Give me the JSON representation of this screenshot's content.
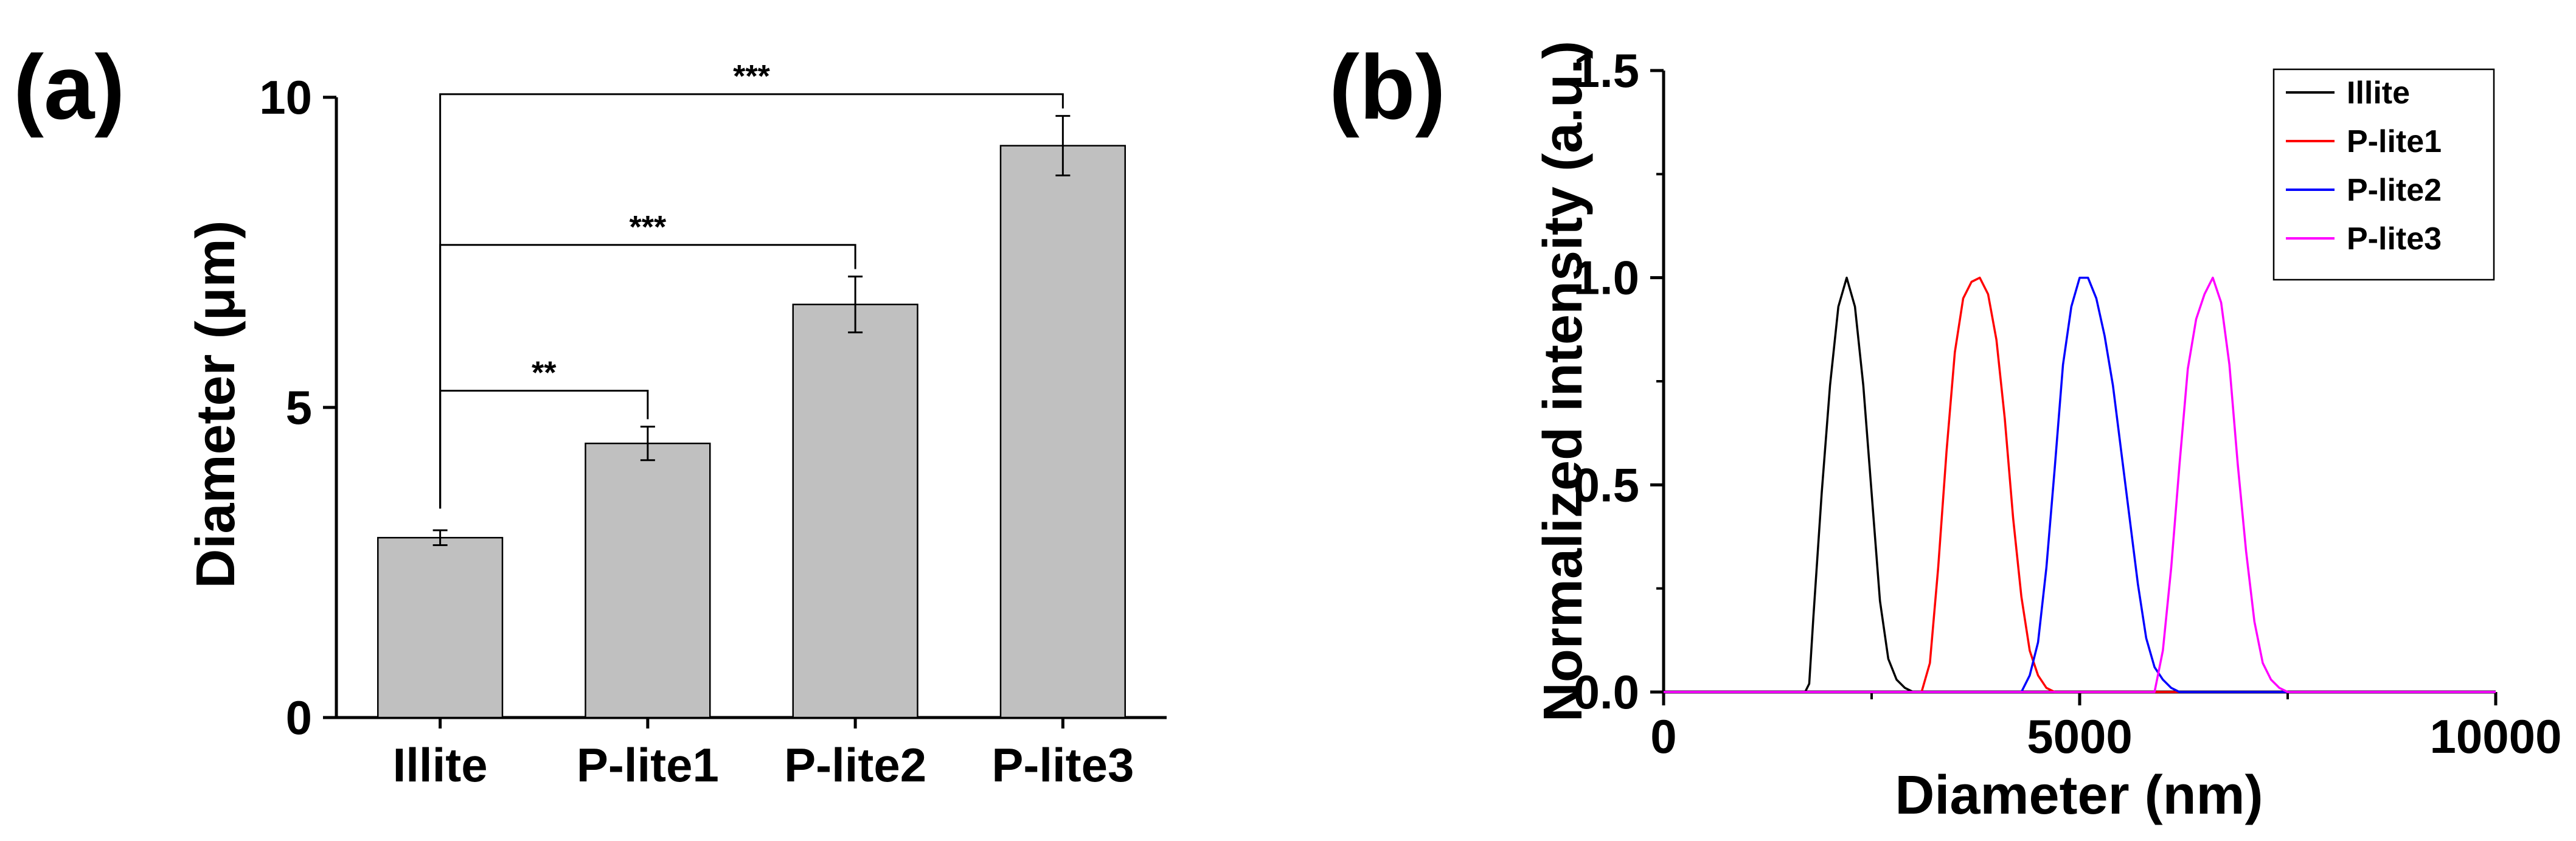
{
  "panel_labels": [
    "(a)",
    "(b)"
  ],
  "chart_data": [
    {
      "type": "bar",
      "categories": [
        "Illite",
        "P-lite1",
        "P-lite2",
        "P-lite3"
      ],
      "values": [
        2.9,
        4.42,
        6.66,
        9.22
      ],
      "errors": [
        0.12,
        0.27,
        0.45,
        0.48
      ],
      "ylabel": "Diameter (μm)",
      "xlabel": "",
      "ylim": [
        0,
        10
      ],
      "yticks": [
        "0",
        "5",
        "10"
      ],
      "bar_color": "#c0c0c0",
      "significance": [
        {
          "from": "Illite",
          "to": "P-lite1",
          "label": "**"
        },
        {
          "from": "Illite",
          "to": "P-lite2",
          "label": "***"
        },
        {
          "from": "Illite",
          "to": "P-lite3",
          "label": "***"
        }
      ]
    },
    {
      "type": "line",
      "xlabel": "Diameter (nm)",
      "ylabel": "Normalized intensity (a.u.)",
      "xlim": [
        0,
        10000
      ],
      "ylim": [
        0,
        1.5
      ],
      "xticks": [
        "0",
        "5000",
        "10000"
      ],
      "yticks": [
        "0.0",
        "0.5",
        "1.0",
        "1.5"
      ],
      "legend_position": "top-right",
      "series": [
        {
          "name": "Illite",
          "color": "#000000",
          "x": [
            0,
            1700,
            1750,
            1800,
            1900,
            2000,
            2100,
            2200,
            2300,
            2400,
            2500,
            2600,
            2700,
            2800,
            2900,
            3000,
            3100,
            3200,
            3250,
            10000
          ],
          "y": [
            0,
            0,
            0.02,
            0.18,
            0.48,
            0.74,
            0.93,
            1.0,
            0.93,
            0.74,
            0.48,
            0.22,
            0.08,
            0.03,
            0.01,
            0,
            0,
            0,
            0,
            0
          ]
        },
        {
          "name": "P-lite1",
          "color": "#ff0000",
          "x": [
            0,
            3100,
            3200,
            3300,
            3400,
            3500,
            3600,
            3700,
            3800,
            3900,
            4000,
            4100,
            4200,
            4300,
            4400,
            4500,
            4600,
            4700,
            10000
          ],
          "y": [
            0,
            0,
            0.07,
            0.3,
            0.58,
            0.82,
            0.95,
            0.99,
            1.0,
            0.96,
            0.85,
            0.66,
            0.42,
            0.23,
            0.1,
            0.04,
            0.01,
            0,
            0
          ]
        },
        {
          "name": "P-lite2",
          "color": "#0000ff",
          "x": [
            0,
            4300,
            4400,
            4500,
            4600,
            4700,
            4800,
            4900,
            5000,
            5100,
            5200,
            5300,
            5400,
            5500,
            5600,
            5700,
            5800,
            5900,
            6000,
            6100,
            6200,
            10000
          ],
          "y": [
            0,
            0,
            0.04,
            0.12,
            0.3,
            0.54,
            0.79,
            0.93,
            1.0,
            1.0,
            0.95,
            0.86,
            0.74,
            0.58,
            0.42,
            0.26,
            0.13,
            0.06,
            0.03,
            0.01,
            0,
            0
          ]
        },
        {
          "name": "P-lite3",
          "color": "#ff00ff",
          "x": [
            0,
            5900,
            6000,
            6100,
            6200,
            6300,
            6400,
            6500,
            6600,
            6700,
            6800,
            6900,
            7000,
            7100,
            7200,
            7300,
            7400,
            7500,
            7600,
            7700,
            10000
          ],
          "y": [
            0,
            0,
            0.1,
            0.3,
            0.55,
            0.78,
            0.9,
            0.96,
            1.0,
            0.94,
            0.79,
            0.55,
            0.34,
            0.17,
            0.07,
            0.03,
            0.01,
            0,
            0,
            0,
            0
          ]
        }
      ]
    }
  ]
}
